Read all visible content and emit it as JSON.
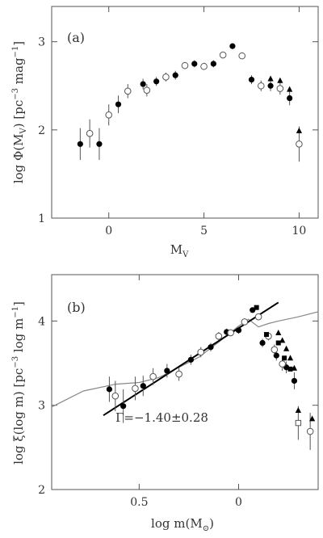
{
  "chart_data": [
    {
      "type": "scatter",
      "panel_label": "(a)",
      "xlabel": "M_V",
      "ylabel": "log Φ(M_V) [pc^-3 mag^-1]",
      "xlim": [
        -3,
        11
      ],
      "ylim": [
        1,
        3.4
      ],
      "xticks": [
        0,
        5,
        10
      ],
      "yticks": [
        1,
        2,
        3
      ],
      "series": [
        {
          "marker": "filled-circle",
          "points": [
            {
              "x": -1.5,
              "y": 1.84,
              "err": 0.18
            },
            {
              "x": -0.5,
              "y": 1.84,
              "err": 0.18
            },
            {
              "x": 0.5,
              "y": 2.29,
              "err": 0.1
            },
            {
              "x": 1.8,
              "y": 2.52,
              "err": 0.06
            },
            {
              "x": 2.5,
              "y": 2.55,
              "err": 0.05
            },
            {
              "x": 3.5,
              "y": 2.62,
              "err": 0.05
            },
            {
              "x": 4.5,
              "y": 2.75,
              "err": 0.04
            },
            {
              "x": 5.5,
              "y": 2.75,
              "err": 0.04
            },
            {
              "x": 6.5,
              "y": 2.95,
              "err": 0.03
            },
            {
              "x": 7.5,
              "y": 2.57,
              "err": 0.05
            },
            {
              "x": 8.5,
              "y": 2.5,
              "err": 0.06
            },
            {
              "x": 9.5,
              "y": 2.36,
              "err": 0.08
            }
          ]
        },
        {
          "marker": "open-circle",
          "points": [
            {
              "x": -1.0,
              "y": 1.96,
              "err": 0.16
            },
            {
              "x": 0.0,
              "y": 2.17,
              "err": 0.12
            },
            {
              "x": 1.0,
              "y": 2.44,
              "err": 0.08
            },
            {
              "x": 2.0,
              "y": 2.45,
              "err": 0.07
            },
            {
              "x": 3.0,
              "y": 2.6,
              "err": 0.05
            },
            {
              "x": 4.0,
              "y": 2.73,
              "err": 0.04
            },
            {
              "x": 5.0,
              "y": 2.72,
              "err": 0.04
            },
            {
              "x": 6.0,
              "y": 2.85,
              "err": 0.03
            },
            {
              "x": 7.0,
              "y": 2.84,
              "err": 0.03
            },
            {
              "x": 8.0,
              "y": 2.5,
              "err": 0.06
            },
            {
              "x": 9.0,
              "y": 2.47,
              "err": 0.07
            },
            {
              "x": 10.0,
              "y": 1.84,
              "err": 0.2
            }
          ]
        },
        {
          "marker": "filled-triangle",
          "points": [
            {
              "x": 8.5,
              "y": 2.58
            },
            {
              "x": 9.0,
              "y": 2.56
            },
            {
              "x": 9.5,
              "y": 2.46
            },
            {
              "x": 10.0,
              "y": 1.99
            }
          ]
        }
      ]
    },
    {
      "type": "scatter",
      "panel_label": "(b)",
      "xlabel": "log m(M⊙)",
      "ylabel": "log ξ(log m) [pc^-3 log m^-1]",
      "xlim": [
        0.94,
        -0.4
      ],
      "ylim": [
        2,
        4.55
      ],
      "xticks": [
        0.5,
        0
      ],
      "yticks": [
        2,
        3,
        4
      ],
      "annotation": "Γ=−1.40±0.28",
      "fit_line": {
        "x": [
          0.68,
          -0.2
        ],
        "y": [
          2.88,
          4.22
        ]
      },
      "model_curve": {
        "x": [
          0.94,
          0.78,
          0.62,
          0.5,
          0.4,
          0.3,
          0.2,
          0.1,
          0.0,
          -0.05,
          -0.1,
          -0.15,
          -0.2,
          -0.3,
          -0.4
        ],
        "y": [
          2.98,
          3.17,
          3.25,
          3.27,
          3.33,
          3.45,
          3.57,
          3.75,
          3.94,
          4.02,
          3.93,
          3.97,
          4.0,
          4.05,
          4.11
        ]
      },
      "series": [
        {
          "marker": "filled-circle",
          "points": [
            {
              "x": 0.65,
              "y": 3.19,
              "err": 0.15
            },
            {
              "x": 0.58,
              "y": 2.99,
              "err": 0.2
            },
            {
              "x": 0.48,
              "y": 3.23,
              "err": 0.12
            },
            {
              "x": 0.36,
              "y": 3.41,
              "err": 0.08
            },
            {
              "x": 0.24,
              "y": 3.54,
              "err": 0.06
            },
            {
              "x": 0.14,
              "y": 3.69,
              "err": 0.05
            },
            {
              "x": 0.06,
              "y": 3.87,
              "err": 0.04
            },
            {
              "x": 0.0,
              "y": 3.89,
              "err": 0.04
            },
            {
              "x": -0.07,
              "y": 4.13,
              "err": 0.03
            },
            {
              "x": -0.12,
              "y": 3.74,
              "err": 0.05
            },
            {
              "x": -0.19,
              "y": 3.59,
              "err": 0.06
            },
            {
              "x": -0.24,
              "y": 3.45,
              "err": 0.07
            },
            {
              "x": -0.28,
              "y": 3.29,
              "err": 0.1
            }
          ]
        },
        {
          "marker": "open-circle",
          "points": [
            {
              "x": 0.62,
              "y": 3.11,
              "err": 0.18
            },
            {
              "x": 0.52,
              "y": 3.2,
              "err": 0.14
            },
            {
              "x": 0.43,
              "y": 3.34,
              "err": 0.1
            },
            {
              "x": 0.3,
              "y": 3.37,
              "err": 0.08
            },
            {
              "x": 0.19,
              "y": 3.63,
              "err": 0.06
            },
            {
              "x": 0.1,
              "y": 3.82,
              "err": 0.05
            },
            {
              "x": 0.04,
              "y": 3.86,
              "err": 0.04
            },
            {
              "x": -0.03,
              "y": 3.99,
              "err": 0.04
            },
            {
              "x": -0.1,
              "y": 4.05,
              "err": 0.04
            },
            {
              "x": -0.15,
              "y": 3.82,
              "err": 0.05
            },
            {
              "x": -0.18,
              "y": 3.66,
              "err": 0.06
            },
            {
              "x": -0.22,
              "y": 3.49,
              "err": 0.08
            },
            {
              "x": -0.36,
              "y": 2.69,
              "err": 0.22
            }
          ]
        },
        {
          "marker": "filled-square",
          "points": [
            {
              "x": -0.09,
              "y": 4.16
            },
            {
              "x": -0.14,
              "y": 3.84
            },
            {
              "x": -0.2,
              "y": 3.74
            },
            {
              "x": -0.23,
              "y": 3.56
            },
            {
              "x": -0.26,
              "y": 3.43
            }
          ]
        },
        {
          "marker": "open-square",
          "points": [
            {
              "x": -0.3,
              "y": 2.79,
              "err": 0.2
            }
          ]
        },
        {
          "marker": "filled-triangle",
          "points": [
            {
              "x": -0.2,
              "y": 3.86
            },
            {
              "x": -0.22,
              "y": 3.77
            },
            {
              "x": -0.24,
              "y": 3.67
            },
            {
              "x": -0.26,
              "y": 3.56
            },
            {
              "x": -0.28,
              "y": 3.44
            },
            {
              "x": -0.3,
              "y": 2.94
            },
            {
              "x": -0.37,
              "y": 2.84
            }
          ]
        }
      ]
    }
  ]
}
